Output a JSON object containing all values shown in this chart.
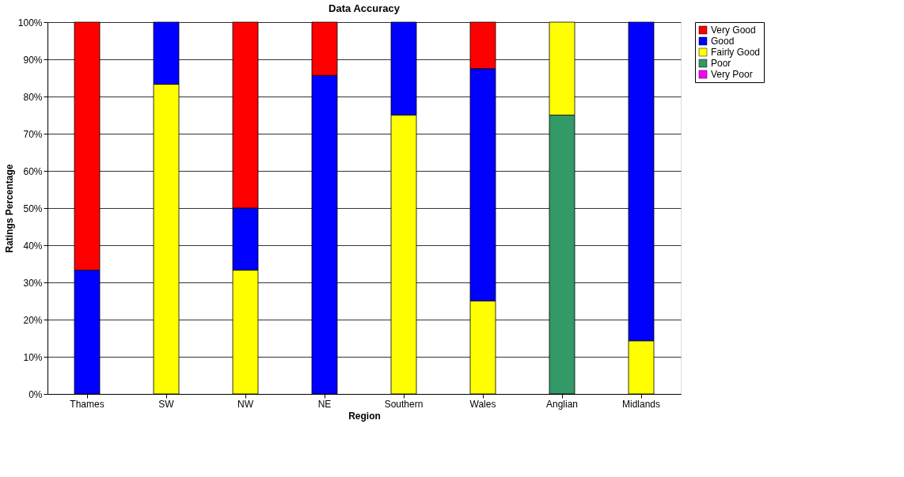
{
  "chart_data": {
    "type": "bar",
    "title": "Data Accuracy",
    "xlabel": "Region",
    "ylabel": "Ratings Percentage",
    "stacked": true,
    "legend": "right",
    "grid": "y",
    "categories": [
      "Thames",
      "SW",
      "NW",
      "NE",
      "Southern",
      "Wales",
      "Anglian",
      "Midlands"
    ],
    "ylim": [
      0,
      100
    ],
    "yticks": [
      {
        "value": 0,
        "label": "0%"
      },
      {
        "value": 10,
        "label": "10%"
      },
      {
        "value": 20,
        "label": "20%"
      },
      {
        "value": 30,
        "label": "30%"
      },
      {
        "value": 40,
        "label": "40%"
      },
      {
        "value": 50,
        "label": "50%"
      },
      {
        "value": 60,
        "label": "60%"
      },
      {
        "value": 70,
        "label": "70%"
      },
      {
        "value": 80,
        "label": "80%"
      },
      {
        "value": 90,
        "label": "90%"
      },
      {
        "value": 100,
        "label": "100%"
      }
    ],
    "series": [
      {
        "name": "Very Poor",
        "color": "#ff00ff",
        "values": [
          0,
          0,
          0,
          0,
          0,
          0,
          0,
          0
        ]
      },
      {
        "name": "Poor",
        "color": "#339966",
        "values": [
          0,
          0,
          0,
          0,
          0,
          0,
          75,
          0
        ]
      },
      {
        "name": "Fairly Good",
        "color": "#ffff00",
        "values": [
          0,
          83.3,
          33.3,
          0,
          75,
          25,
          25,
          14.3
        ]
      },
      {
        "name": "Good",
        "color": "#0000ff",
        "values": [
          33.3,
          16.7,
          16.7,
          85.7,
          25,
          62.5,
          0,
          85.7
        ]
      },
      {
        "name": "Very Good",
        "color": "#ff0000",
        "values": [
          66.7,
          0,
          50,
          14.3,
          0,
          12.5,
          0,
          0
        ]
      }
    ]
  }
}
